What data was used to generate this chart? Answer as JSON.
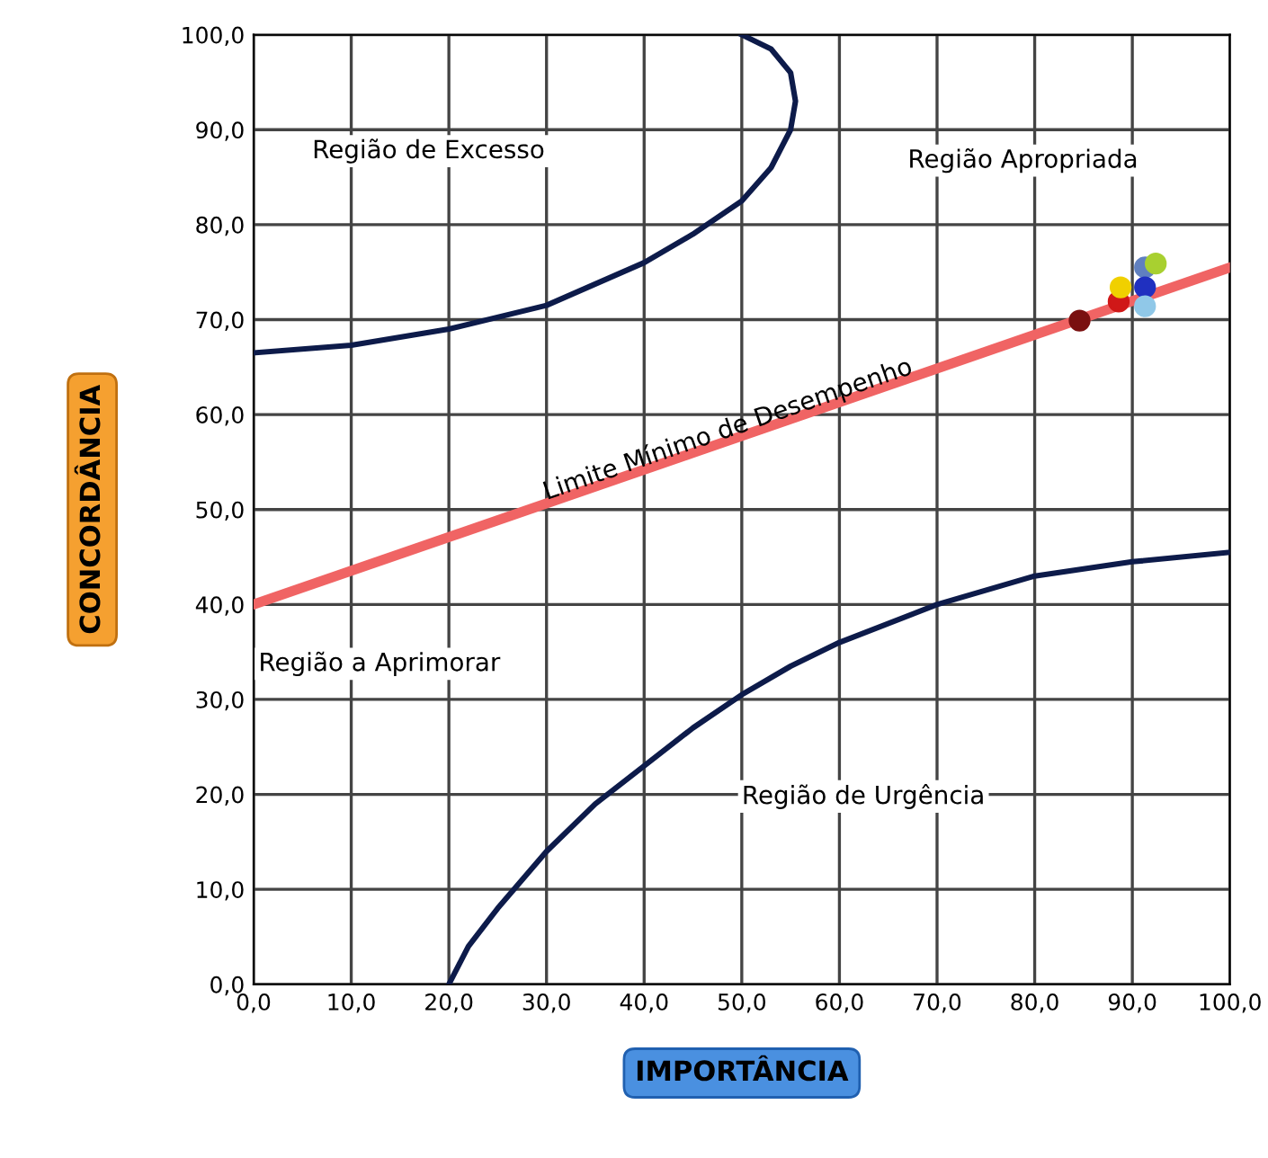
{
  "chart_data": {
    "type": "line",
    "xlabel": "IMPORTÂNCIA",
    "ylabel": "CONCORDÂNCIA",
    "xlim": [
      0,
      100
    ],
    "ylim": [
      0,
      100
    ],
    "xticks": [
      {
        "value": 0,
        "label": "0,0"
      },
      {
        "value": 10,
        "label": "10,0"
      },
      {
        "value": 20,
        "label": "20,0"
      },
      {
        "value": 30,
        "label": "30,0"
      },
      {
        "value": 40,
        "label": "40,0"
      },
      {
        "value": 50,
        "label": "50,0"
      },
      {
        "value": 60,
        "label": "60,0"
      },
      {
        "value": 70,
        "label": "70,0"
      },
      {
        "value": 80,
        "label": "80,0"
      },
      {
        "value": 90,
        "label": "90,0"
      },
      {
        "value": 100,
        "label": "100,0"
      }
    ],
    "yticks": [
      {
        "value": 0,
        "label": "0,0"
      },
      {
        "value": 10,
        "label": "10,0"
      },
      {
        "value": 20,
        "label": "20,0"
      },
      {
        "value": 30,
        "label": "30,0"
      },
      {
        "value": 40,
        "label": "40,0"
      },
      {
        "value": 50,
        "label": "50,0"
      },
      {
        "value": 60,
        "label": "60,0"
      },
      {
        "value": 70,
        "label": "70,0"
      },
      {
        "value": 80,
        "label": "80,0"
      },
      {
        "value": 90,
        "label": "90,0"
      },
      {
        "value": 100,
        "label": "100,0"
      }
    ],
    "grid": true,
    "series": [
      {
        "color": "#0d1b4a",
        "x": [
          0,
          10,
          20,
          30,
          40,
          45,
          50,
          53,
          55,
          55.5,
          55,
          53,
          50
        ],
        "values": [
          66.5,
          67.3,
          69,
          71.5,
          76,
          79,
          82.5,
          86,
          90,
          93,
          96,
          98.5,
          100
        ]
      },
      {
        "color": "#0d1b4a",
        "x": [
          20,
          22,
          25,
          30,
          35,
          40,
          45,
          50,
          55,
          60,
          70,
          80,
          90,
          100
        ],
        "values": [
          0,
          4,
          8,
          14,
          19,
          23,
          27,
          30.5,
          33.5,
          36,
          40,
          43,
          44.5,
          45.5
        ]
      },
      {
        "color": "#f06464",
        "x": [
          0,
          100
        ],
        "values": [
          40,
          75.5
        ]
      },
      {
        "type": "scatter",
        "marker": "circle",
        "x": [
          84.6,
          88.6,
          88.8,
          91.3,
          92.4,
          91.3,
          91.3
        ],
        "values": [
          69.9,
          71.9,
          73.4,
          75.5,
          75.9,
          73.4,
          71.4
        ],
        "colors": [
          "#7a1010",
          "#d01818",
          "#f0d000",
          "#6080c0",
          "#a8d030",
          "#2030c0",
          "#90c8e8"
        ]
      }
    ],
    "annotations": [
      "Região de Excesso",
      "Região Apropriada",
      "Região a Aprimorar",
      "Região de Urgência",
      {
        "text": "Limite Mínimo de Desempenho",
        "x": 30,
        "y": 51
      }
    ]
  }
}
